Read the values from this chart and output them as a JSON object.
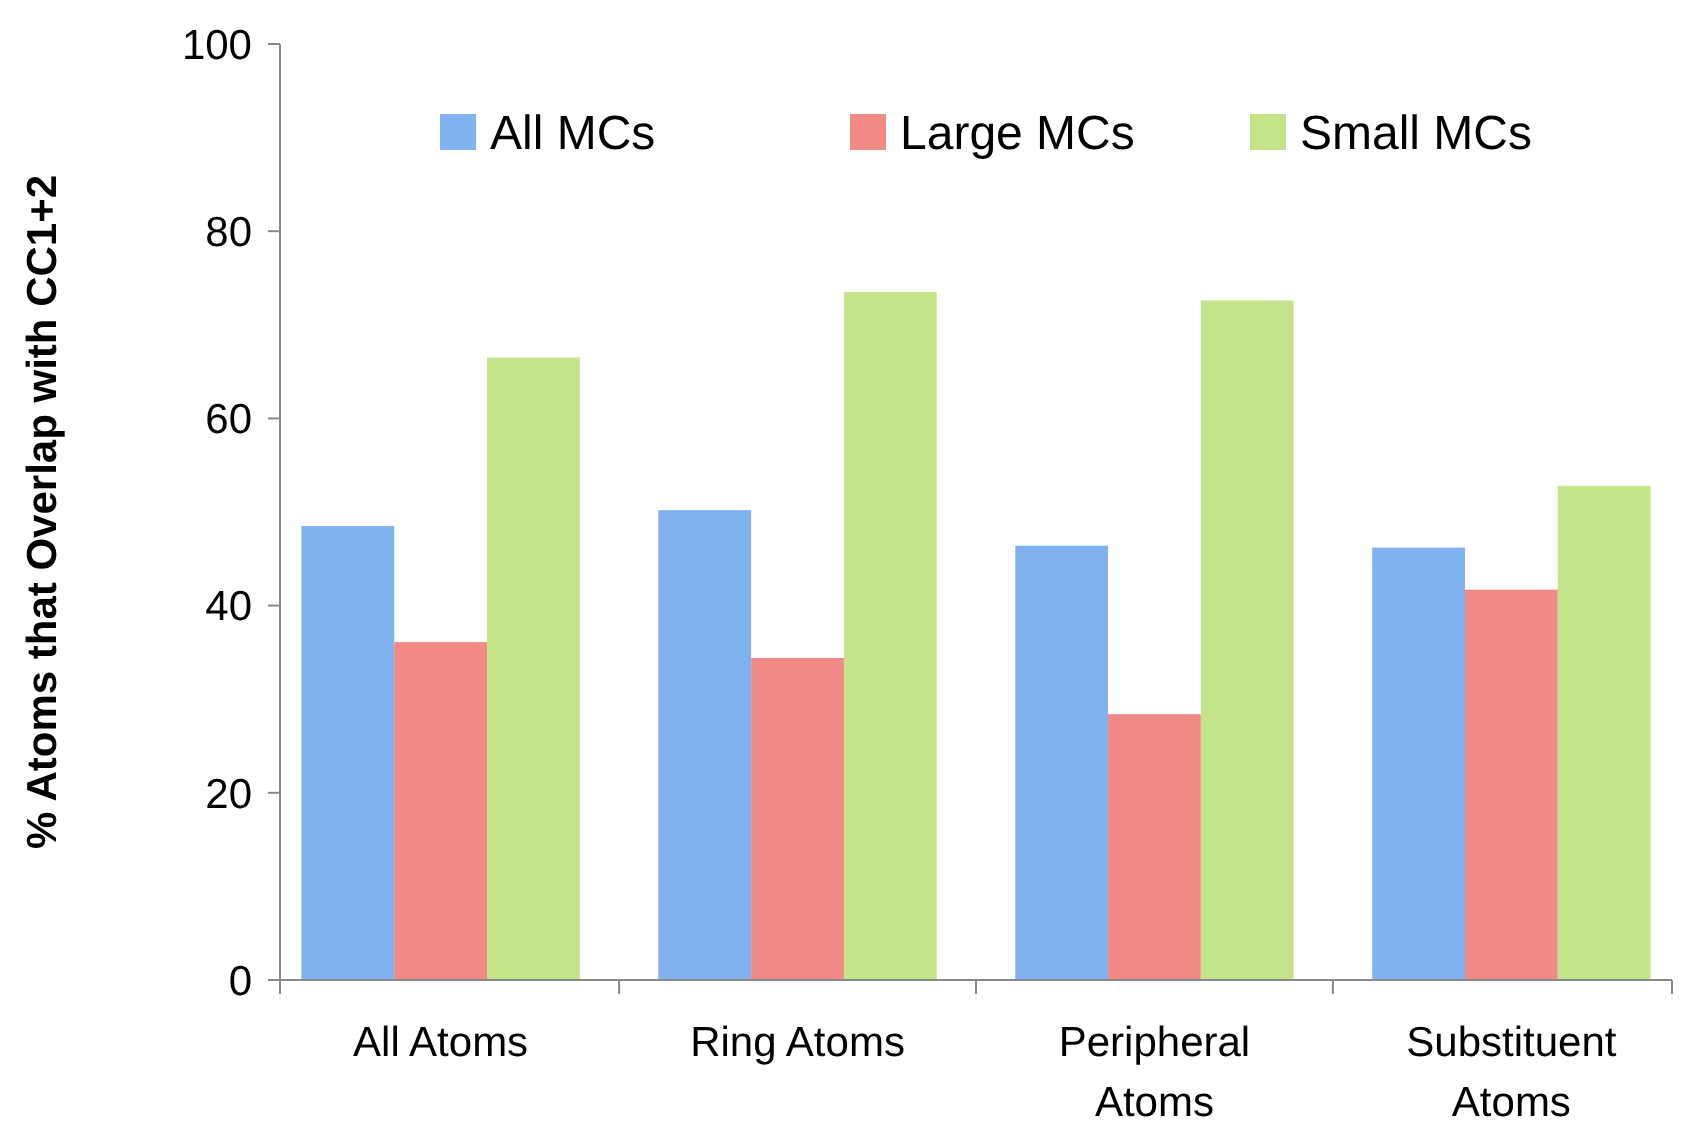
{
  "chart_data": {
    "type": "bar",
    "ylabel": "% Atoms that Overlap with CC1+2",
    "categories": [
      "All Atoms",
      "Ring Atoms",
      "Peripheral Atoms",
      "Substituent Atoms"
    ],
    "series": [
      {
        "name": "All MCs",
        "color": "#7fb2ee",
        "values": [
          48.5,
          50.2,
          46.4,
          46.2
        ]
      },
      {
        "name": "Large MCs",
        "color": "#f08a85",
        "values": [
          36.1,
          34.4,
          28.4,
          41.7
        ]
      },
      {
        "name": "Small MCs",
        "color": "#c4e48a",
        "values": [
          66.5,
          73.5,
          72.6,
          52.8
        ]
      }
    ],
    "ylim": [
      0,
      100
    ],
    "yticks": [
      0,
      20,
      40,
      60,
      80,
      100
    ],
    "grid": false,
    "legend": "top"
  }
}
